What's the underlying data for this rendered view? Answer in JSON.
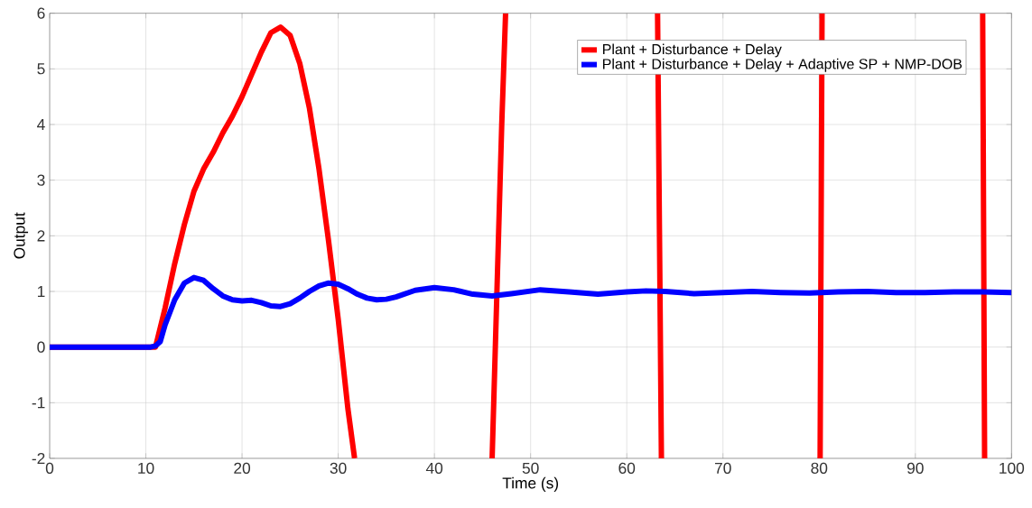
{
  "chart_data": {
    "type": "line",
    "xlabel": "Time (s)",
    "ylabel": "Output",
    "xlim": [
      0,
      100
    ],
    "ylim": [
      -2,
      6
    ],
    "xticks": [
      0,
      10,
      20,
      30,
      40,
      50,
      60,
      70,
      80,
      90,
      100
    ],
    "yticks": [
      -2,
      -1,
      0,
      1,
      2,
      3,
      4,
      5,
      6
    ],
    "grid": true,
    "legend": "top right",
    "line_style": "solid",
    "marker": "none",
    "series": [
      {
        "name": "Plant + Disturbance + Delay",
        "color": "#ff0000",
        "x": [
          0,
          10.5,
          11,
          12,
          13,
          14,
          15,
          16,
          17,
          18,
          19,
          20,
          21,
          22,
          23,
          24,
          25,
          26,
          27,
          28,
          29,
          30,
          31,
          31.7,
          39,
          46,
          46.5,
          47,
          47.4,
          55,
          63.2,
          63.6,
          72,
          80.1,
          80.3,
          89,
          97,
          97.2
        ],
        "values": [
          0,
          0,
          0,
          0.7,
          1.5,
          2.2,
          2.8,
          3.2,
          3.5,
          3.85,
          4.15,
          4.5,
          4.9,
          5.3,
          5.65,
          5.75,
          5.6,
          5.1,
          4.3,
          3.2,
          1.9,
          0.5,
          -1.1,
          -2,
          null,
          -2,
          1,
          4,
          6,
          null,
          6,
          -2,
          null,
          -2,
          6,
          null,
          6,
          -2
        ]
      },
      {
        "name": "Plant + Disturbance + Delay + Adaptive SP + NMP-DOB",
        "color": "#0000ff",
        "x": [
          0,
          10.5,
          11,
          11.5,
          12,
          13,
          14,
          15,
          16,
          17,
          18,
          19,
          20,
          21,
          22,
          23,
          24,
          25,
          26,
          27,
          28,
          29,
          30,
          31,
          32,
          33,
          34,
          35,
          36,
          38,
          40,
          42,
          44,
          46,
          48,
          51,
          54,
          57,
          60,
          62,
          64,
          67,
          70,
          73,
          76,
          79,
          82,
          85,
          88,
          91,
          94,
          97,
          100
        ],
        "values": [
          0,
          0,
          0.02,
          0.1,
          0.4,
          0.85,
          1.15,
          1.25,
          1.2,
          1.05,
          0.92,
          0.85,
          0.83,
          0.84,
          0.8,
          0.74,
          0.73,
          0.78,
          0.88,
          1.0,
          1.1,
          1.15,
          1.13,
          1.05,
          0.95,
          0.88,
          0.85,
          0.86,
          0.9,
          1.02,
          1.07,
          1.03,
          0.95,
          0.92,
          0.96,
          1.03,
          0.99,
          0.95,
          0.99,
          1.01,
          1.0,
          0.96,
          0.98,
          1.0,
          0.98,
          0.97,
          0.99,
          1.0,
          0.98,
          0.98,
          0.99,
          0.99,
          0.98
        ]
      }
    ]
  }
}
